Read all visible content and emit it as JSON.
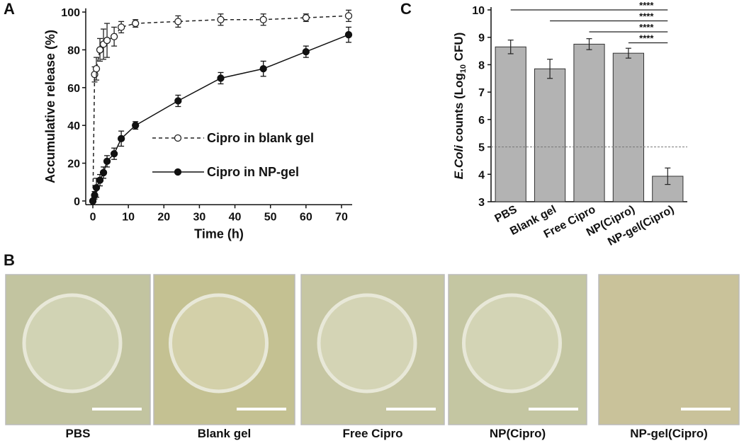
{
  "chart_data": [
    {
      "type": "line",
      "panel": "A",
      "xlabel": "Time (h)",
      "ylabel": "Accumulative release (%)",
      "x": [
        0,
        0.5,
        1,
        2,
        3,
        4,
        6,
        8,
        12,
        24,
        36,
        48,
        60,
        72
      ],
      "xlim": [
        -2,
        73
      ],
      "xticks": [
        0,
        10,
        20,
        30,
        40,
        50,
        60,
        70
      ],
      "ylim": [
        -2,
        102
      ],
      "yticks": [
        0,
        20,
        40,
        60,
        80,
        100
      ],
      "series": [
        {
          "name": "Cipro in blank gel",
          "color": "#222222",
          "line_style": "dashed",
          "marker_fill": "#ffffff",
          "values": [
            0,
            67,
            70,
            80,
            83,
            85,
            87,
            92,
            94,
            95,
            96,
            96,
            97,
            98
          ],
          "errors": [
            0,
            4,
            6,
            6,
            8,
            9,
            5,
            3,
            2,
            3,
            3,
            3,
            2,
            3
          ]
        },
        {
          "name": "Cipro in NP-gel",
          "color": "#111111",
          "line_style": "solid",
          "marker_fill": "#111111",
          "values": [
            0,
            3,
            7,
            11,
            15,
            21,
            25,
            33,
            40,
            53,
            65,
            70,
            79,
            88
          ],
          "errors": [
            1,
            2,
            5,
            3,
            3,
            3,
            3,
            4,
            2,
            3,
            3,
            4,
            3,
            4
          ]
        }
      ]
    },
    {
      "type": "bar",
      "panel": "C",
      "ylabel": {
        "italic": "E.Coli",
        "text": " counts (Log",
        "sub": "10",
        "end": " CFU)"
      },
      "categories": [
        "PBS",
        "Blank gel",
        "Free Cipro",
        "NP(Cipro)",
        "NP-gel(Cipro)"
      ],
      "values": [
        8.65,
        7.85,
        8.75,
        8.42,
        3.93
      ],
      "errors": [
        0.25,
        0.35,
        0.2,
        0.18,
        0.3
      ],
      "color": "#b3b3b3",
      "ylim": [
        3,
        10
      ],
      "yticks": [
        3,
        4,
        5,
        6,
        7,
        8,
        9,
        10
      ],
      "reference_line": 5,
      "significance": [
        {
          "label": "****",
          "from": "PBS",
          "to": "NP-gel(Cipro)"
        },
        {
          "label": "****",
          "from": "Blank gel",
          "to": "NP-gel(Cipro)"
        },
        {
          "label": "****",
          "from": "Free Cipro",
          "to": "NP-gel(Cipro)"
        },
        {
          "label": "****",
          "from": "NP(Cipro)",
          "to": "NP-gel(Cipro)"
        }
      ]
    }
  ],
  "images": {
    "panel": "B",
    "labels": [
      "PBS",
      "Blank gel",
      "Free Cipro",
      "NP(Cipro)",
      "NP-gel(Cipro)"
    ]
  }
}
